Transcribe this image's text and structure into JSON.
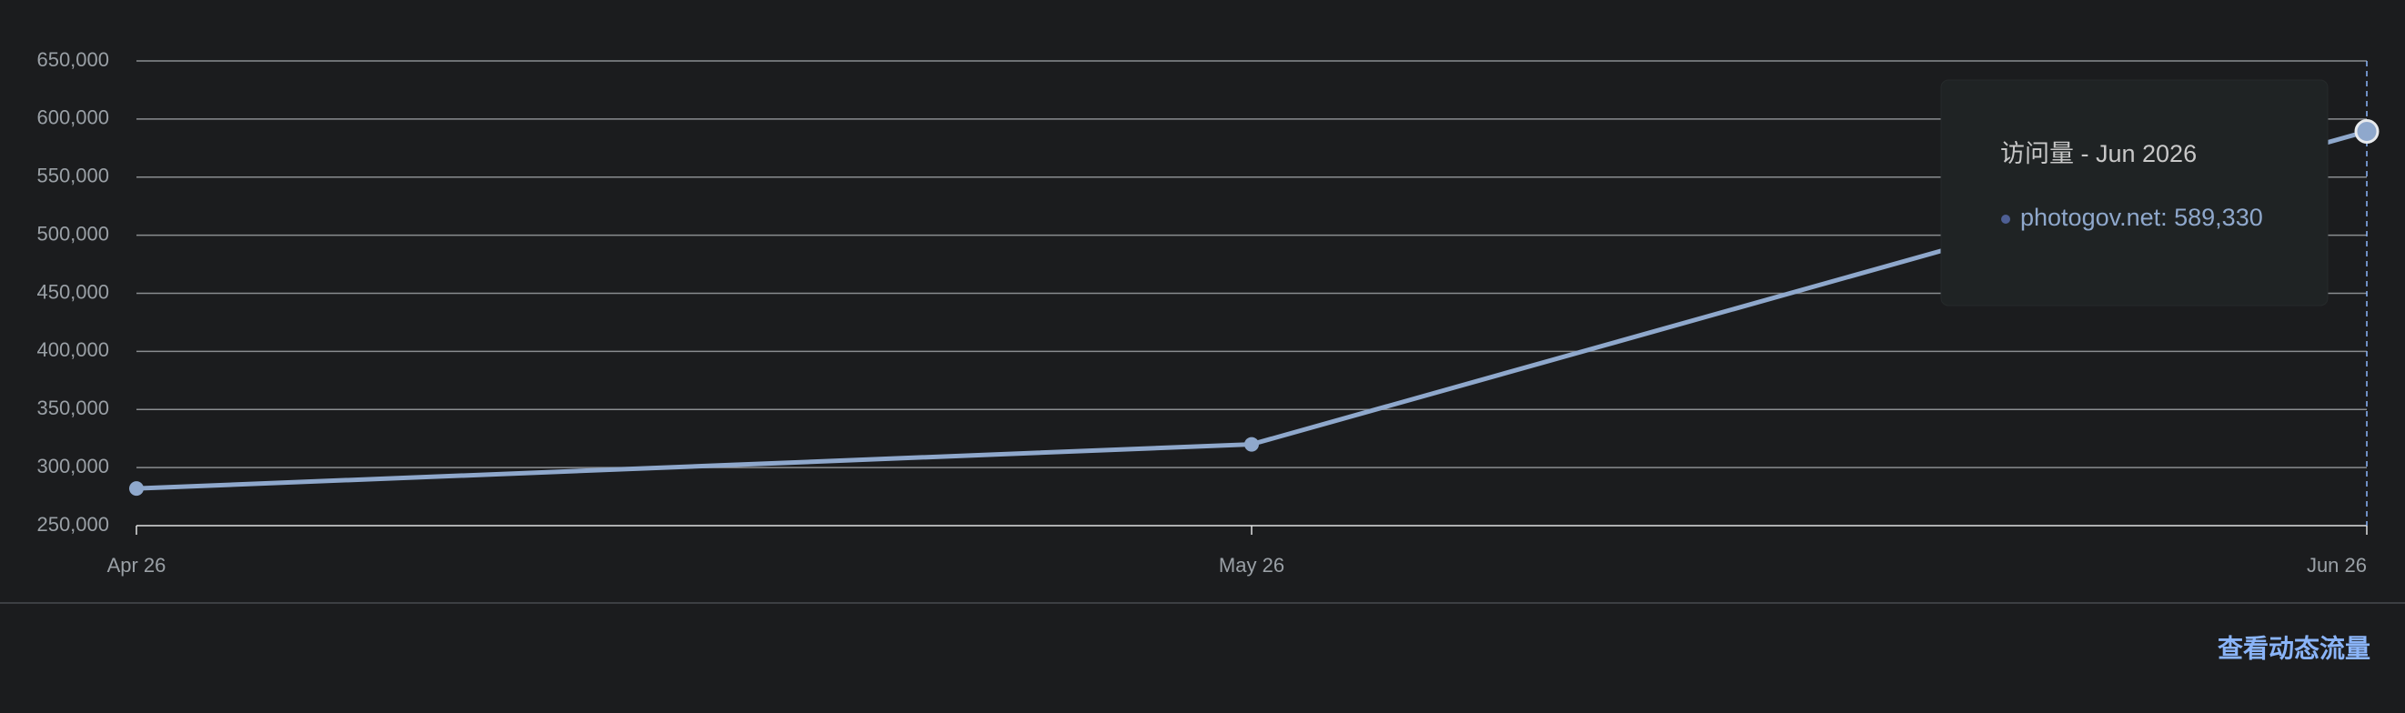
{
  "chart_data": {
    "type": "line",
    "categories": [
      "Apr 26",
      "May 26",
      "Jun 26"
    ],
    "series": [
      {
        "name": "photogov.net",
        "color": "#8fa8cc",
        "values": [
          282000,
          320000,
          589330
        ]
      }
    ],
    "ylim": [
      250000,
      650000
    ],
    "yticks": [
      {
        "value": 250000,
        "label": "250,000"
      },
      {
        "value": 300000,
        "label": "300,000"
      },
      {
        "value": 350000,
        "label": "350,000"
      },
      {
        "value": 400000,
        "label": "400,000"
      },
      {
        "value": 450000,
        "label": "450,000"
      },
      {
        "value": 500000,
        "label": "500,000"
      },
      {
        "value": 550000,
        "label": "550,000"
      },
      {
        "value": 600000,
        "label": "600,000"
      },
      {
        "value": 650000,
        "label": "650,000"
      }
    ],
    "grid": true,
    "tooltip": {
      "title": "访问量 - Jun 2026",
      "entry": "photogov.net: 589,330"
    }
  },
  "footer": {
    "link": "查看动态流量"
  }
}
